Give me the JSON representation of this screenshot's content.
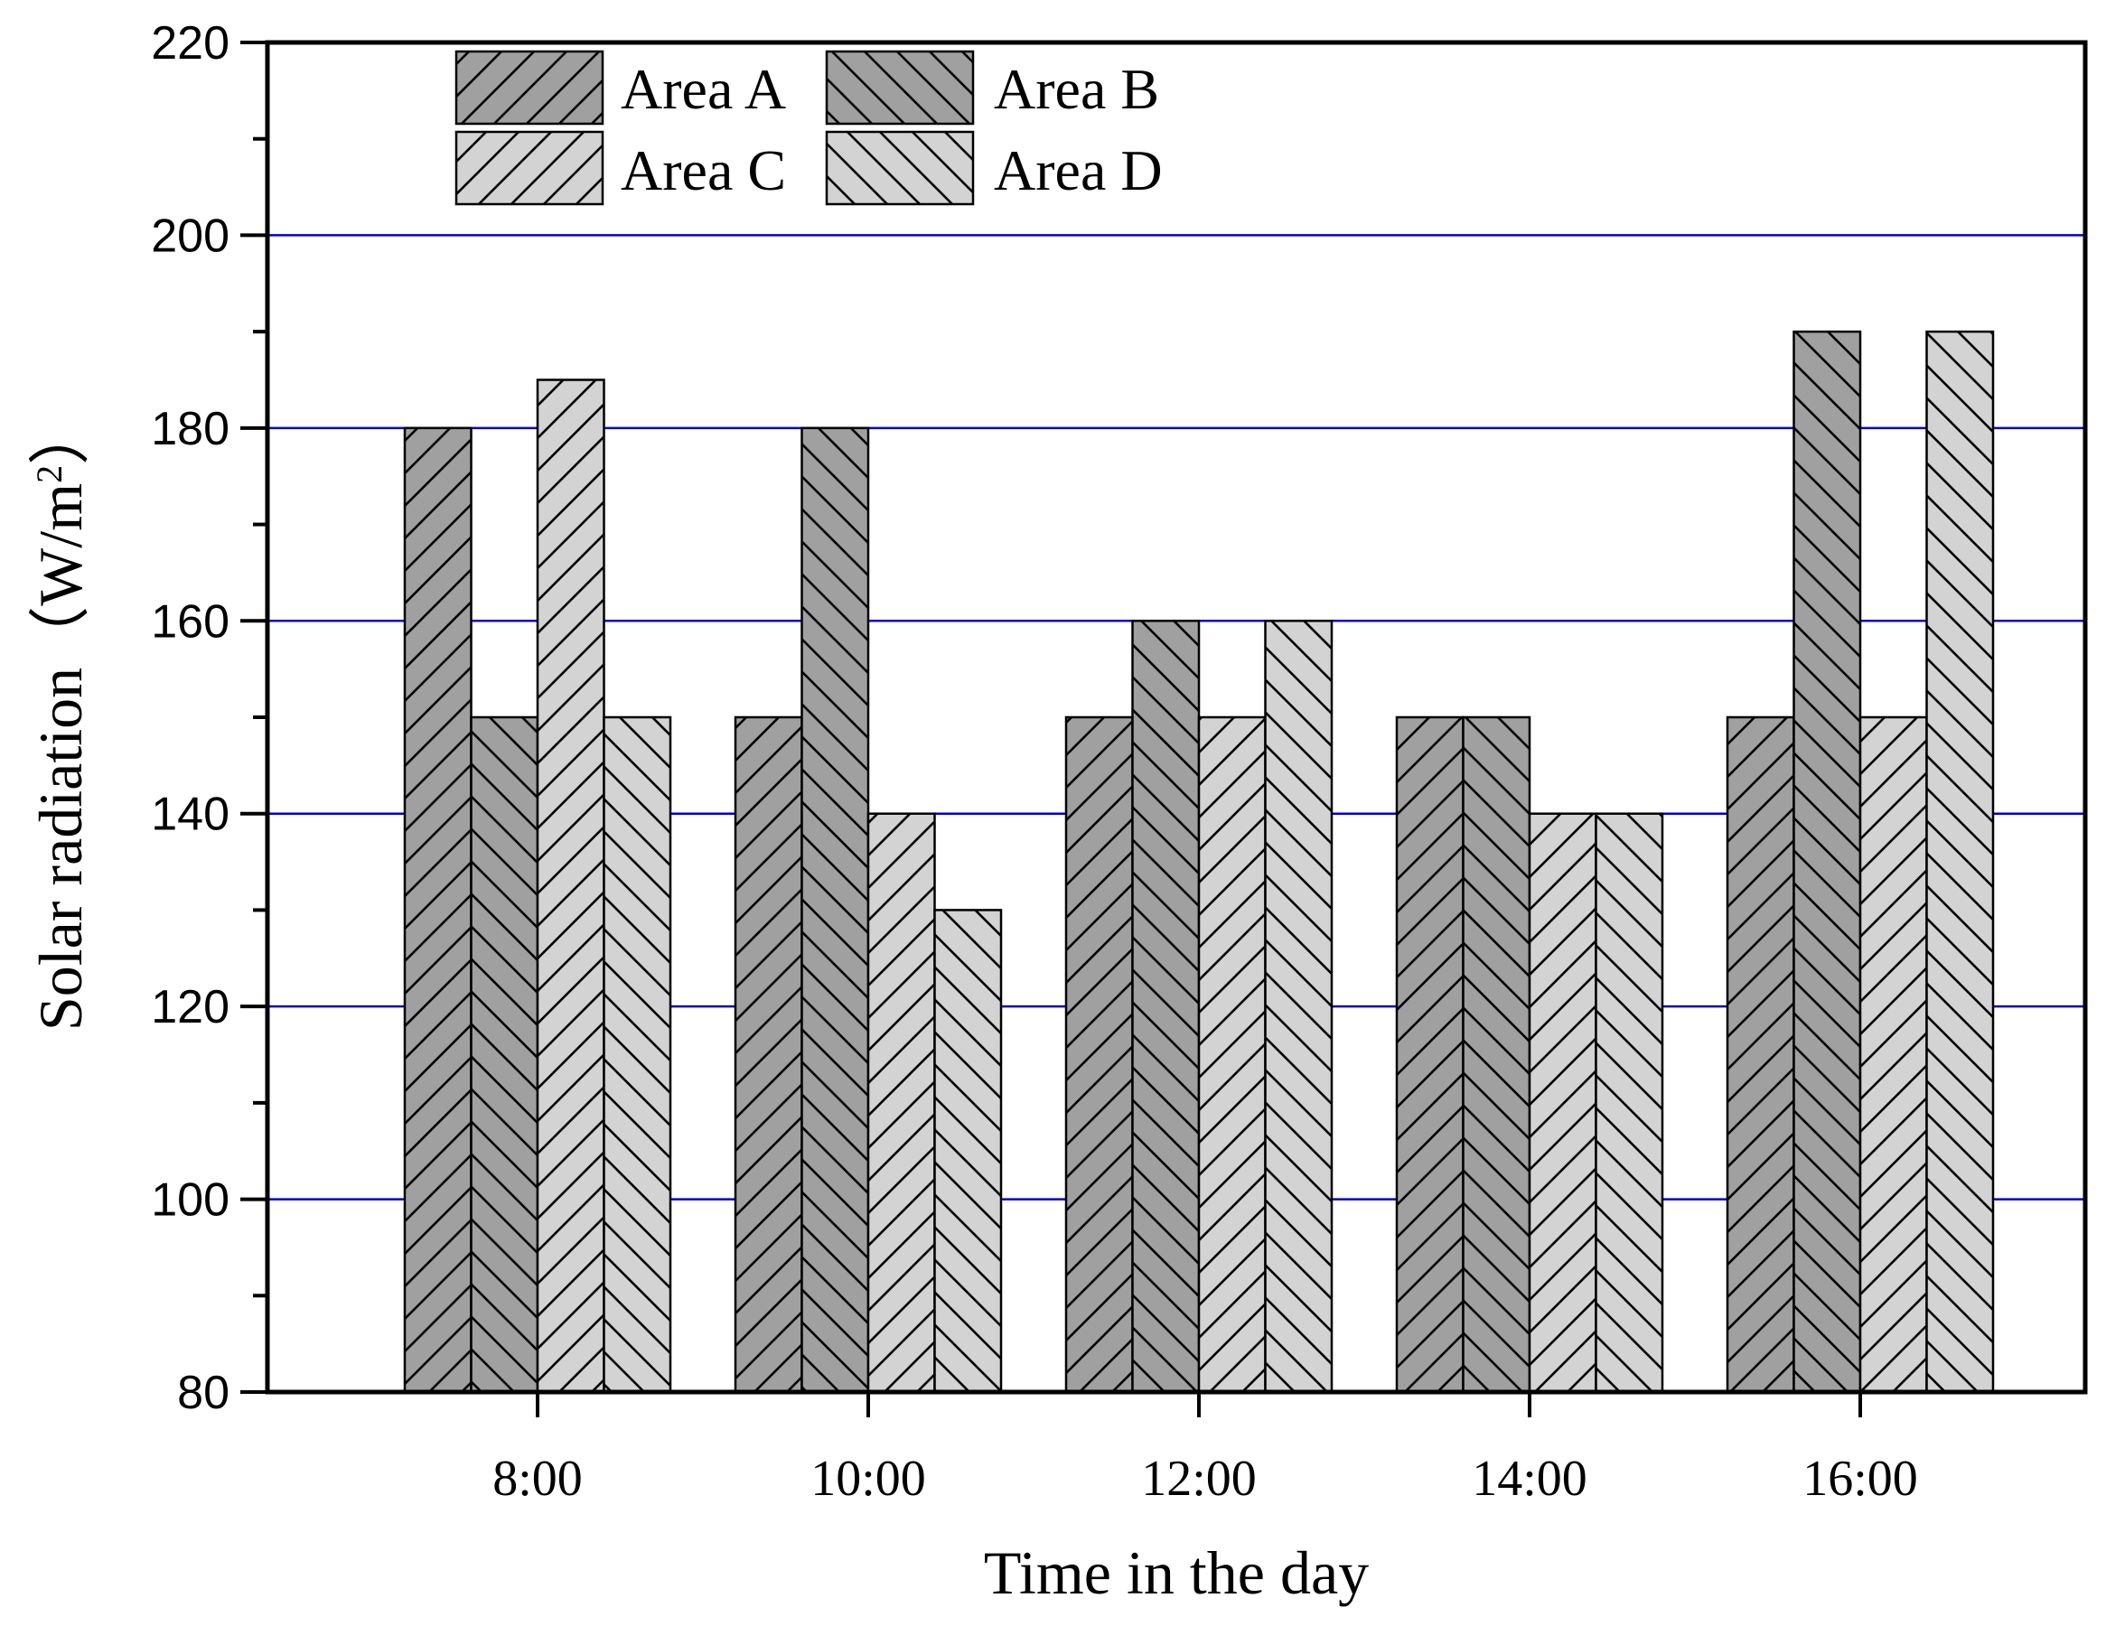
{
  "chart_data": {
    "type": "bar",
    "title": "",
    "xlabel": "Time in the day",
    "ylabel": "Solar radiation",
    "ylabel_unit_open": "（W/m",
    "ylabel_unit_sup": "2",
    "ylabel_unit_close": "）",
    "categories": [
      "8:00",
      "10:00",
      "12:00",
      "14:00",
      "16:00"
    ],
    "ylim": [
      80,
      220
    ],
    "yticks": [
      80,
      100,
      120,
      140,
      160,
      180,
      200,
      220
    ],
    "gridlines": [
      100,
      120,
      140,
      160,
      180,
      200
    ],
    "legend_position": "top-left",
    "series": [
      {
        "name": "Area A",
        "values": [
          180,
          150,
          150,
          150,
          150
        ],
        "fill": "#a0a0a0",
        "hatch": "forward"
      },
      {
        "name": "Area B",
        "values": [
          150,
          180,
          160,
          150,
          190
        ],
        "fill": "#a0a0a0",
        "hatch": "backward"
      },
      {
        "name": "Area C",
        "values": [
          185,
          140,
          150,
          140,
          150
        ],
        "fill": "#d3d3d3",
        "hatch": "forward"
      },
      {
        "name": "Area D",
        "values": [
          150,
          130,
          160,
          140,
          190
        ],
        "fill": "#d3d3d3",
        "hatch": "backward"
      }
    ],
    "colors": {
      "grid": "#0000cc",
      "axis": "#000000"
    }
  }
}
